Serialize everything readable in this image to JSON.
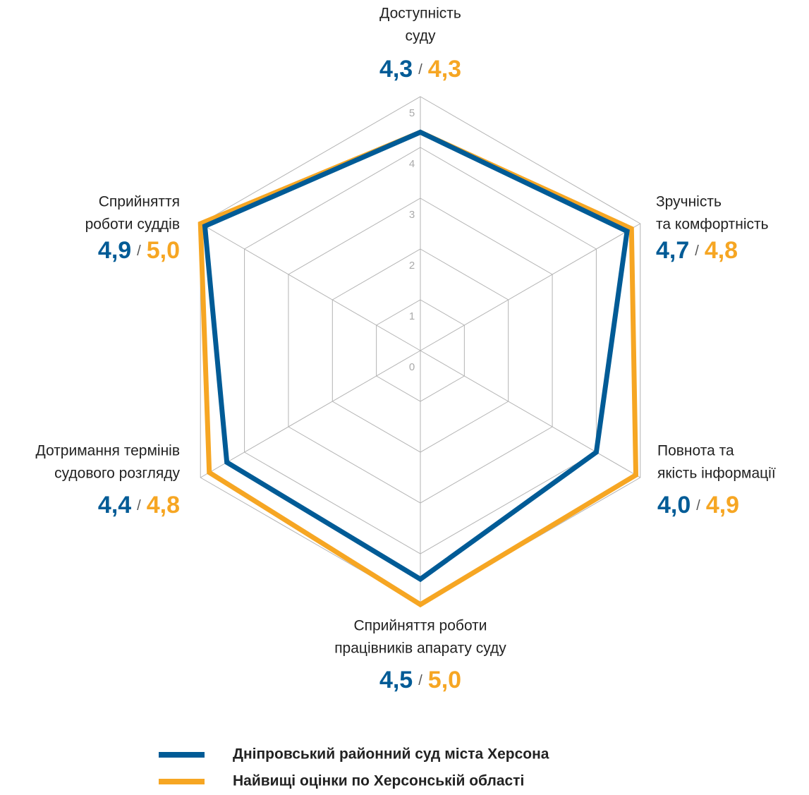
{
  "chart_data": {
    "type": "radar",
    "categories": [
      [
        "Доступність",
        "суду"
      ],
      [
        "Зручність",
        "та комфортність"
      ],
      [
        "Повнота та",
        "якість інформації"
      ],
      [
        "Сприйняття роботи",
        "працівників апарату суду"
      ],
      [
        "Дотримання термінів",
        "судового розгляду"
      ],
      [
        "Сприйняття",
        "роботи суддів"
      ]
    ],
    "series": [
      {
        "name": "Дніпровський районний суд міста Херсона",
        "color": "#005b96",
        "values": [
          4.3,
          4.7,
          4.0,
          4.5,
          4.4,
          4.9
        ],
        "value_labels": [
          "4,3",
          "4,7",
          "4,0",
          "4,5",
          "4,4",
          "4,9"
        ]
      },
      {
        "name": "Найвищі оцінки по Херсонській області",
        "color": "#f6a623",
        "values": [
          4.3,
          4.8,
          4.9,
          5.0,
          4.8,
          5.0
        ],
        "value_labels": [
          "4,3",
          "4,8",
          "4,9",
          "5,0",
          "4,8",
          "5,0"
        ]
      }
    ],
    "value_separator": "/",
    "rlim": [
      0,
      5
    ],
    "rticks": [
      0,
      1,
      2,
      3,
      4,
      5
    ],
    "grid": true
  }
}
